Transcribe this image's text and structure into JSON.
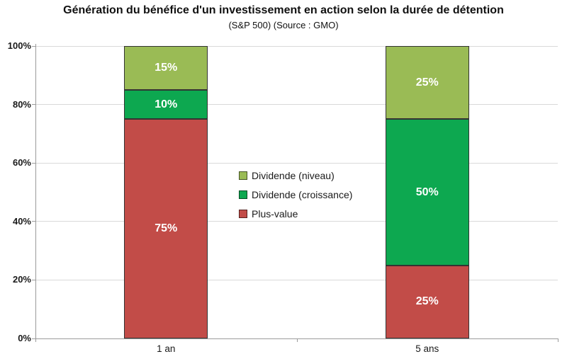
{
  "chart_data": {
    "type": "bar",
    "stacked": true,
    "title": "Génération du bénéfice d'un investissement en action selon la durée de détention",
    "subtitle": "(S&P 500) (Source : GMO)",
    "categories": [
      "1 an",
      "5 ans"
    ],
    "series": [
      {
        "name": "Plus-value",
        "color": "#C24C48",
        "values": [
          75,
          25
        ]
      },
      {
        "name": "Dividende (croissance)",
        "color": "#0DA850",
        "values": [
          10,
          50
        ]
      },
      {
        "name": "Dividende (niveau)",
        "color": "#9ABB55",
        "values": [
          15,
          25
        ]
      }
    ],
    "bar_value_labels": [
      [
        "75%",
        "10%",
        "15%"
      ],
      [
        "25%",
        "50%",
        "25%"
      ]
    ],
    "y_axis": {
      "min": 0,
      "max": 100,
      "ticks": [
        "0%",
        "20%",
        "40%",
        "60%",
        "80%",
        "100%"
      ],
      "grid": true
    },
    "legend": {
      "position": "center",
      "entries": [
        {
          "label": "Dividende (niveau)",
          "color": "#9ABB55"
        },
        {
          "label": "Dividende (croissance)",
          "color": "#0DA850"
        },
        {
          "label": "Plus-value",
          "color": "#C24C48"
        }
      ]
    },
    "colors": {
      "background": "#FFFFFF",
      "gridline": "#D9D9D9",
      "axis": "#9B9B9B",
      "bar_border": "#333333",
      "bar_label_text": "#FFFFFF",
      "text": "#111111"
    }
  }
}
